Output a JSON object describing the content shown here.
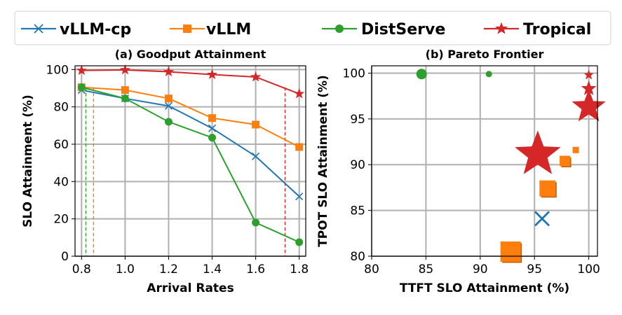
{
  "colors": {
    "vllm_cp": "#1f77b4",
    "vllm": "#ff7f0e",
    "distserve": "#2ca02c",
    "tropical": "#d62728",
    "grid": "#b0b0b0"
  },
  "legend": [
    {
      "key": "vllm_cp",
      "label": "vLLM-cp",
      "marker": "x"
    },
    {
      "key": "vllm",
      "label": "vLLM",
      "marker": "square"
    },
    {
      "key": "distserve",
      "label": "DistServe",
      "marker": "circle"
    },
    {
      "key": "tropical",
      "label": "Tropical",
      "marker": "star"
    }
  ],
  "chart_data": [
    {
      "type": "line",
      "title": "(a) Goodput Attainment",
      "xlabel": "Arrival Rates",
      "ylabel": "SLO Attainment (%)",
      "xlim": [
        0.77,
        1.83
      ],
      "ylim": [
        0,
        102
      ],
      "xticks": [
        0.8,
        1.0,
        1.2,
        1.4,
        1.6,
        1.8
      ],
      "xtick_labels": [
        "0.8",
        "1.0",
        "1.2",
        "1.4",
        "1.6",
        "1.8"
      ],
      "yticks": [
        0,
        20,
        40,
        60,
        80,
        100
      ],
      "ytick_labels": [
        "0",
        "20",
        "40",
        "60",
        "80",
        "100"
      ],
      "grid": true,
      "x": [
        0.8,
        1.0,
        1.2,
        1.4,
        1.6,
        1.8
      ],
      "series": [
        {
          "key": "vllm_cp",
          "name": "vLLM-cp",
          "marker": "x",
          "values": [
            89,
            84.5,
            80.5,
            68.5,
            53.5,
            32
          ]
        },
        {
          "key": "vllm",
          "name": "vLLM",
          "marker": "square",
          "values": [
            90.5,
            89,
            84.5,
            74,
            70.5,
            58.5
          ]
        },
        {
          "key": "distserve",
          "name": "DistServe",
          "marker": "circle",
          "values": [
            90.5,
            84.5,
            72,
            63.5,
            18,
            7.5
          ]
        },
        {
          "key": "tropical",
          "name": "Tropical",
          "marker": "star",
          "values": [
            99.5,
            99.8,
            98.8,
            97.3,
            96,
            87
          ]
        }
      ],
      "vlines": [
        {
          "key": "distserve",
          "x": 0.82
        },
        {
          "key": "vllm",
          "x": 0.855
        },
        {
          "key": "tropical",
          "x": 1.735
        }
      ]
    },
    {
      "type": "scatter",
      "title": "(b) Pareto Frontier",
      "xlabel": "TTFT SLO Attainment (%)",
      "ylabel": "TPOT SLO Attainment (%)",
      "xlim": [
        80,
        100.8
      ],
      "ylim": [
        80,
        100.8
      ],
      "xticks": [
        80,
        85,
        90,
        95,
        100
      ],
      "xtick_labels": [
        "80",
        "85",
        "90",
        "95",
        "100"
      ],
      "yticks": [
        80,
        85,
        90,
        95,
        100
      ],
      "ytick_labels": [
        "80",
        "85",
        "90",
        "95",
        "100"
      ],
      "grid": true,
      "series": [
        {
          "key": "vllm_cp",
          "name": "vLLM-cp",
          "marker": "x",
          "points": [
            {
              "x": 95.7,
              "y": 84.1,
              "size": 10
            },
            {
              "x": 96.5,
              "y": 87.4,
              "size": 5
            },
            {
              "x": 100,
              "y": 99.7,
              "size": 4
            }
          ]
        },
        {
          "key": "vllm",
          "name": "vLLM",
          "marker": "square",
          "points": [
            {
              "x": 92.8,
              "y": 80.5,
              "size": 14
            },
            {
              "x": 96.2,
              "y": 87.4,
              "size": 11
            },
            {
              "x": 97.8,
              "y": 90.4,
              "size": 7
            },
            {
              "x": 98.8,
              "y": 91.6,
              "size": 4
            }
          ]
        },
        {
          "key": "distserve",
          "name": "DistServe",
          "marker": "circle",
          "points": [
            {
              "x": 84.6,
              "y": 99.9,
              "size": 7
            },
            {
              "x": 90.8,
              "y": 99.9,
              "size": 4
            }
          ]
        },
        {
          "key": "tropical",
          "name": "Tropical",
          "marker": "star",
          "points": [
            {
              "x": 95.3,
              "y": 91.1,
              "size": 33
            },
            {
              "x": 100,
              "y": 96.3,
              "size": 24
            },
            {
              "x": 100,
              "y": 98.3,
              "size": 10
            },
            {
              "x": 100,
              "y": 99.8,
              "size": 6
            }
          ]
        }
      ]
    }
  ]
}
